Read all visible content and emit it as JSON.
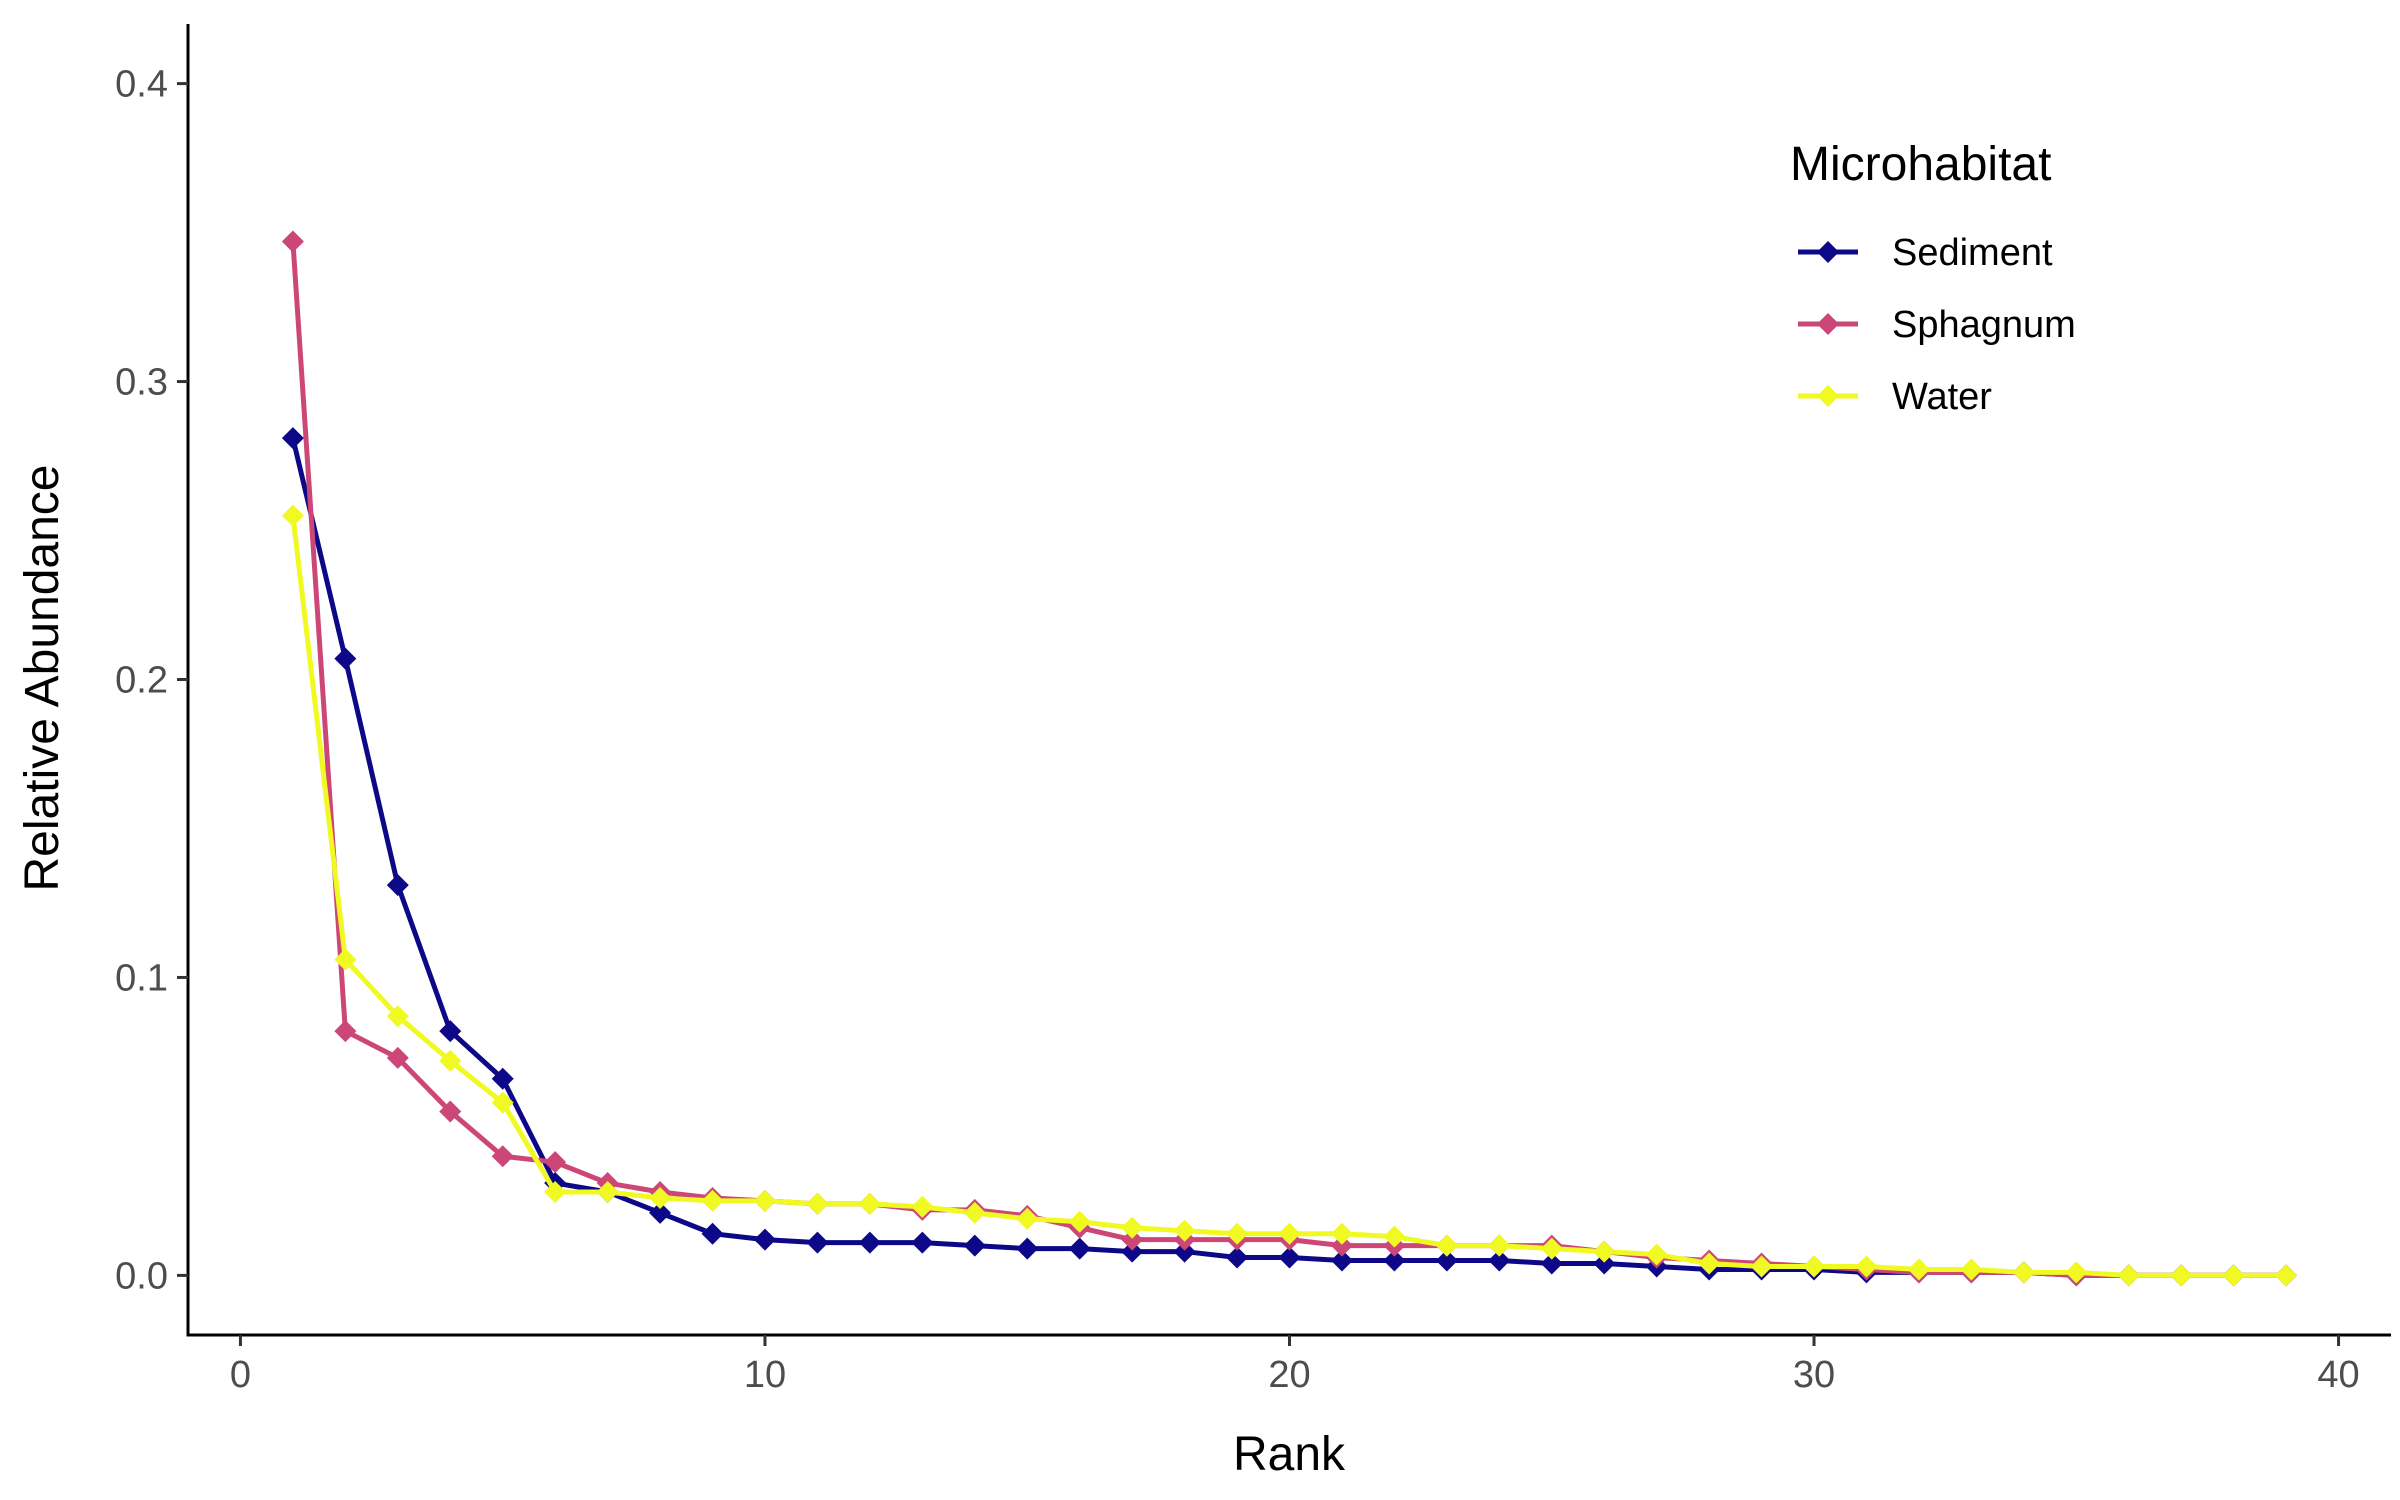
{
  "chart_data": {
    "type": "line",
    "xlabel": "Rank",
    "ylabel": "Relative Abundance",
    "xlim": [
      -1,
      41
    ],
    "ylim": [
      -0.02,
      0.42
    ],
    "xticks": [
      0,
      10,
      20,
      30,
      40
    ],
    "yticks": [
      0.0,
      0.1,
      0.2,
      0.3,
      0.4
    ],
    "xtick_labels": [
      "0",
      "10",
      "20",
      "30",
      "40"
    ],
    "ytick_labels": [
      "0.0",
      "0.1",
      "0.2",
      "0.3",
      "0.4"
    ],
    "grid": false,
    "legend": {
      "title": "Microhabitat",
      "placement": "top-right"
    },
    "marker": "diamond",
    "x": [
      1,
      2,
      3,
      4,
      5,
      6,
      7,
      8,
      9,
      10,
      11,
      12,
      13,
      14,
      15,
      16,
      17,
      18,
      19,
      20,
      21,
      22,
      23,
      24,
      25,
      26,
      27,
      28,
      29,
      30,
      31,
      32,
      33,
      34,
      35,
      36,
      37,
      38,
      39
    ],
    "series": [
      {
        "name": "Sediment",
        "color": "#0d0887",
        "values": [
          0.281,
          0.207,
          0.131,
          0.082,
          0.066,
          0.031,
          0.028,
          0.021,
          0.014,
          0.012,
          0.011,
          0.011,
          0.011,
          0.01,
          0.009,
          0.009,
          0.008,
          0.008,
          0.006,
          0.006,
          0.005,
          0.005,
          0.005,
          0.005,
          0.004,
          0.004,
          0.003,
          0.002,
          0.002,
          0.002,
          0.001,
          0.001,
          0.001,
          0.001,
          0.0,
          0.0,
          0.0,
          0.0,
          0.0
        ]
      },
      {
        "name": "Sphagnum",
        "color": "#cc4778",
        "values": [
          0.347,
          0.082,
          0.073,
          0.055,
          0.04,
          0.038,
          0.031,
          0.028,
          0.026,
          0.025,
          0.024,
          0.024,
          0.022,
          0.022,
          0.02,
          0.016,
          0.012,
          0.012,
          0.012,
          0.012,
          0.01,
          0.01,
          0.01,
          0.01,
          0.01,
          0.008,
          0.006,
          0.005,
          0.004,
          0.003,
          0.002,
          0.001,
          0.001,
          0.001,
          0.0,
          0.0,
          0.0,
          0.0,
          0.0
        ]
      },
      {
        "name": "Water",
        "color": "#f0f921",
        "values": [
          0.255,
          0.106,
          0.087,
          0.072,
          0.058,
          0.028,
          0.028,
          0.026,
          0.025,
          0.025,
          0.024,
          0.024,
          0.023,
          0.021,
          0.019,
          0.018,
          0.016,
          0.015,
          0.014,
          0.014,
          0.014,
          0.013,
          0.01,
          0.01,
          0.009,
          0.008,
          0.007,
          0.004,
          0.003,
          0.003,
          0.003,
          0.002,
          0.002,
          0.001,
          0.001,
          0.0,
          0.0,
          0.0,
          0.0
        ]
      }
    ]
  }
}
